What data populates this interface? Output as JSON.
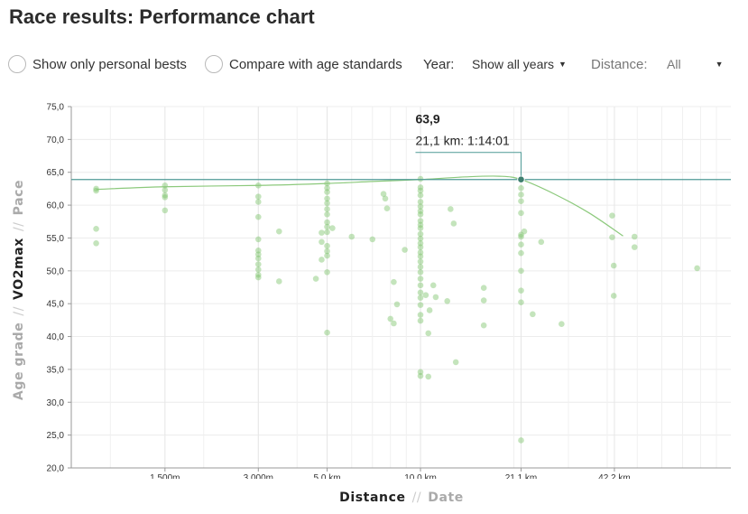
{
  "page_title": "Race results: Performance chart",
  "controls": {
    "personal_bests_label": "Show only personal bests",
    "age_standards_label": "Compare with age standards",
    "year_label": "Year:",
    "year_value": "Show all years",
    "distance_label": "Distance:",
    "distance_value": "All"
  },
  "axes": {
    "y_options": [
      "Age grade",
      "VO2max",
      "Pace"
    ],
    "y_active": "VO2max",
    "x_options": [
      "Distance",
      "Date"
    ],
    "x_active": "Distance",
    "separator": "//"
  },
  "tooltip": {
    "value": "63,9",
    "detail": "21,1 km: 1:14:01"
  },
  "colors": {
    "points": "#7cc46a",
    "trend": "#8cc97c",
    "reference": "#4f9a96",
    "highlight": "#3f7f6f"
  },
  "chart_data": {
    "type": "scatter",
    "title": "",
    "xlabel": "Distance",
    "ylabel": "VO2max",
    "x_scale": "log",
    "x_unit": "km",
    "x_range_km": [
      0.8,
      90
    ],
    "ylim": [
      20,
      75
    ],
    "y_ticks": [
      "75,0",
      "70,0",
      "65,0",
      "60,0",
      "55,0",
      "50,0",
      "45,0",
      "40,0",
      "35,0",
      "30,0",
      "25,0",
      "20,0"
    ],
    "x_ticks": [
      {
        "km": 1.5,
        "label": "1 500m"
      },
      {
        "km": 3.0,
        "label": "3 000m"
      },
      {
        "km": 5.0,
        "label": "5,0 km"
      },
      {
        "km": 10.0,
        "label": "10,0 km"
      },
      {
        "km": 21.1,
        "label": "21,1 km"
      },
      {
        "km": 42.2,
        "label": "42,2 km"
      }
    ],
    "grid": true,
    "reference_line": 63.9,
    "highlighted_point": {
      "x": 21.1,
      "y": 63.9
    },
    "trend": [
      [
        0.9,
        62.4
      ],
      [
        1.5,
        62.8
      ],
      [
        3.0,
        63.0
      ],
      [
        5.0,
        63.3
      ],
      [
        7.0,
        63.6
      ],
      [
        10.0,
        63.9
      ],
      [
        14.0,
        64.3
      ],
      [
        18.0,
        64.4
      ],
      [
        21.1,
        63.9
      ],
      [
        27.0,
        61.7
      ],
      [
        35.0,
        58.8
      ],
      [
        45.0,
        55.3
      ]
    ],
    "points": [
      [
        0.9,
        62.5
      ],
      [
        0.9,
        62.2
      ],
      [
        0.9,
        56.4
      ],
      [
        0.9,
        54.2
      ],
      [
        1.5,
        63.0
      ],
      [
        1.5,
        62.3
      ],
      [
        1.5,
        61.5
      ],
      [
        1.5,
        61.2
      ],
      [
        1.5,
        59.2
      ],
      [
        3.0,
        63.0
      ],
      [
        3.0,
        61.3
      ],
      [
        3.0,
        60.5
      ],
      [
        3.0,
        58.2
      ],
      [
        3.0,
        54.8
      ],
      [
        3.0,
        53.1
      ],
      [
        3.0,
        52.5
      ],
      [
        3.0,
        51.9
      ],
      [
        3.0,
        51.0
      ],
      [
        3.0,
        50.2
      ],
      [
        3.0,
        49.4
      ],
      [
        3.0,
        49.0
      ],
      [
        3.5,
        56.0
      ],
      [
        3.5,
        48.4
      ],
      [
        4.6,
        48.8
      ],
      [
        4.8,
        55.8
      ],
      [
        4.8,
        54.4
      ],
      [
        4.8,
        51.7
      ],
      [
        5.0,
        63.3
      ],
      [
        5.0,
        62.6
      ],
      [
        5.0,
        62.0
      ],
      [
        5.0,
        61.0
      ],
      [
        5.0,
        60.3
      ],
      [
        5.0,
        59.4
      ],
      [
        5.0,
        58.6
      ],
      [
        5.0,
        57.4
      ],
      [
        5.0,
        56.7
      ],
      [
        5.0,
        55.9
      ],
      [
        5.0,
        53.8
      ],
      [
        5.0,
        53.0
      ],
      [
        5.0,
        52.3
      ],
      [
        5.0,
        49.8
      ],
      [
        5.0,
        40.6
      ],
      [
        5.2,
        56.5
      ],
      [
        6.0,
        55.2
      ],
      [
        7.0,
        54.8
      ],
      [
        7.6,
        61.7
      ],
      [
        7.7,
        61.0
      ],
      [
        7.8,
        59.5
      ],
      [
        8.0,
        42.7
      ],
      [
        8.2,
        42.0
      ],
      [
        8.4,
        44.9
      ],
      [
        8.2,
        48.3
      ],
      [
        8.9,
        53.2
      ],
      [
        10.0,
        64.0
      ],
      [
        10.0,
        62.7
      ],
      [
        10.0,
        62.2
      ],
      [
        10.0,
        61.5
      ],
      [
        10.0,
        60.5
      ],
      [
        10.0,
        59.8
      ],
      [
        10.0,
        59.1
      ],
      [
        10.0,
        58.6
      ],
      [
        10.0,
        57.6
      ],
      [
        10.0,
        57.0
      ],
      [
        10.0,
        56.5
      ],
      [
        10.0,
        55.6
      ],
      [
        10.0,
        54.9
      ],
      [
        10.0,
        54.2
      ],
      [
        10.0,
        53.6
      ],
      [
        10.0,
        52.8
      ],
      [
        10.0,
        52.2
      ],
      [
        10.0,
        51.4
      ],
      [
        10.0,
        50.6
      ],
      [
        10.0,
        49.8
      ],
      [
        10.0,
        48.8
      ],
      [
        10.0,
        47.8
      ],
      [
        10.0,
        46.7
      ],
      [
        10.0,
        45.9
      ],
      [
        10.0,
        44.8
      ],
      [
        10.0,
        43.3
      ],
      [
        10.0,
        42.4
      ],
      [
        10.0,
        34.6
      ],
      [
        10.0,
        34.0
      ],
      [
        10.4,
        46.3
      ],
      [
        10.6,
        40.5
      ],
      [
        10.7,
        44.0
      ],
      [
        11.0,
        47.8
      ],
      [
        11.2,
        46.0
      ],
      [
        10.6,
        33.9
      ],
      [
        12.2,
        45.4
      ],
      [
        12.5,
        59.4
      ],
      [
        12.8,
        57.2
      ],
      [
        13.0,
        36.1
      ],
      [
        16.0,
        47.4
      ],
      [
        16.0,
        45.5
      ],
      [
        16.0,
        41.7
      ],
      [
        21.1,
        63.9
      ],
      [
        21.1,
        62.6
      ],
      [
        21.1,
        61.6
      ],
      [
        21.1,
        60.6
      ],
      [
        21.1,
        58.8
      ],
      [
        21.1,
        55.5
      ],
      [
        21.1,
        55.2
      ],
      [
        21.1,
        54.0
      ],
      [
        21.1,
        52.7
      ],
      [
        21.1,
        50.0
      ],
      [
        21.1,
        47.0
      ],
      [
        21.1,
        45.2
      ],
      [
        21.1,
        24.2
      ],
      [
        21.6,
        56.0
      ],
      [
        23.0,
        43.4
      ],
      [
        24.5,
        54.4
      ],
      [
        28.5,
        41.9
      ],
      [
        41.5,
        58.4
      ],
      [
        41.5,
        55.1
      ],
      [
        42.0,
        50.8
      ],
      [
        42.0,
        46.2
      ],
      [
        49.0,
        55.2
      ],
      [
        49.0,
        53.6
      ],
      [
        78.0,
        50.4
      ]
    ]
  }
}
